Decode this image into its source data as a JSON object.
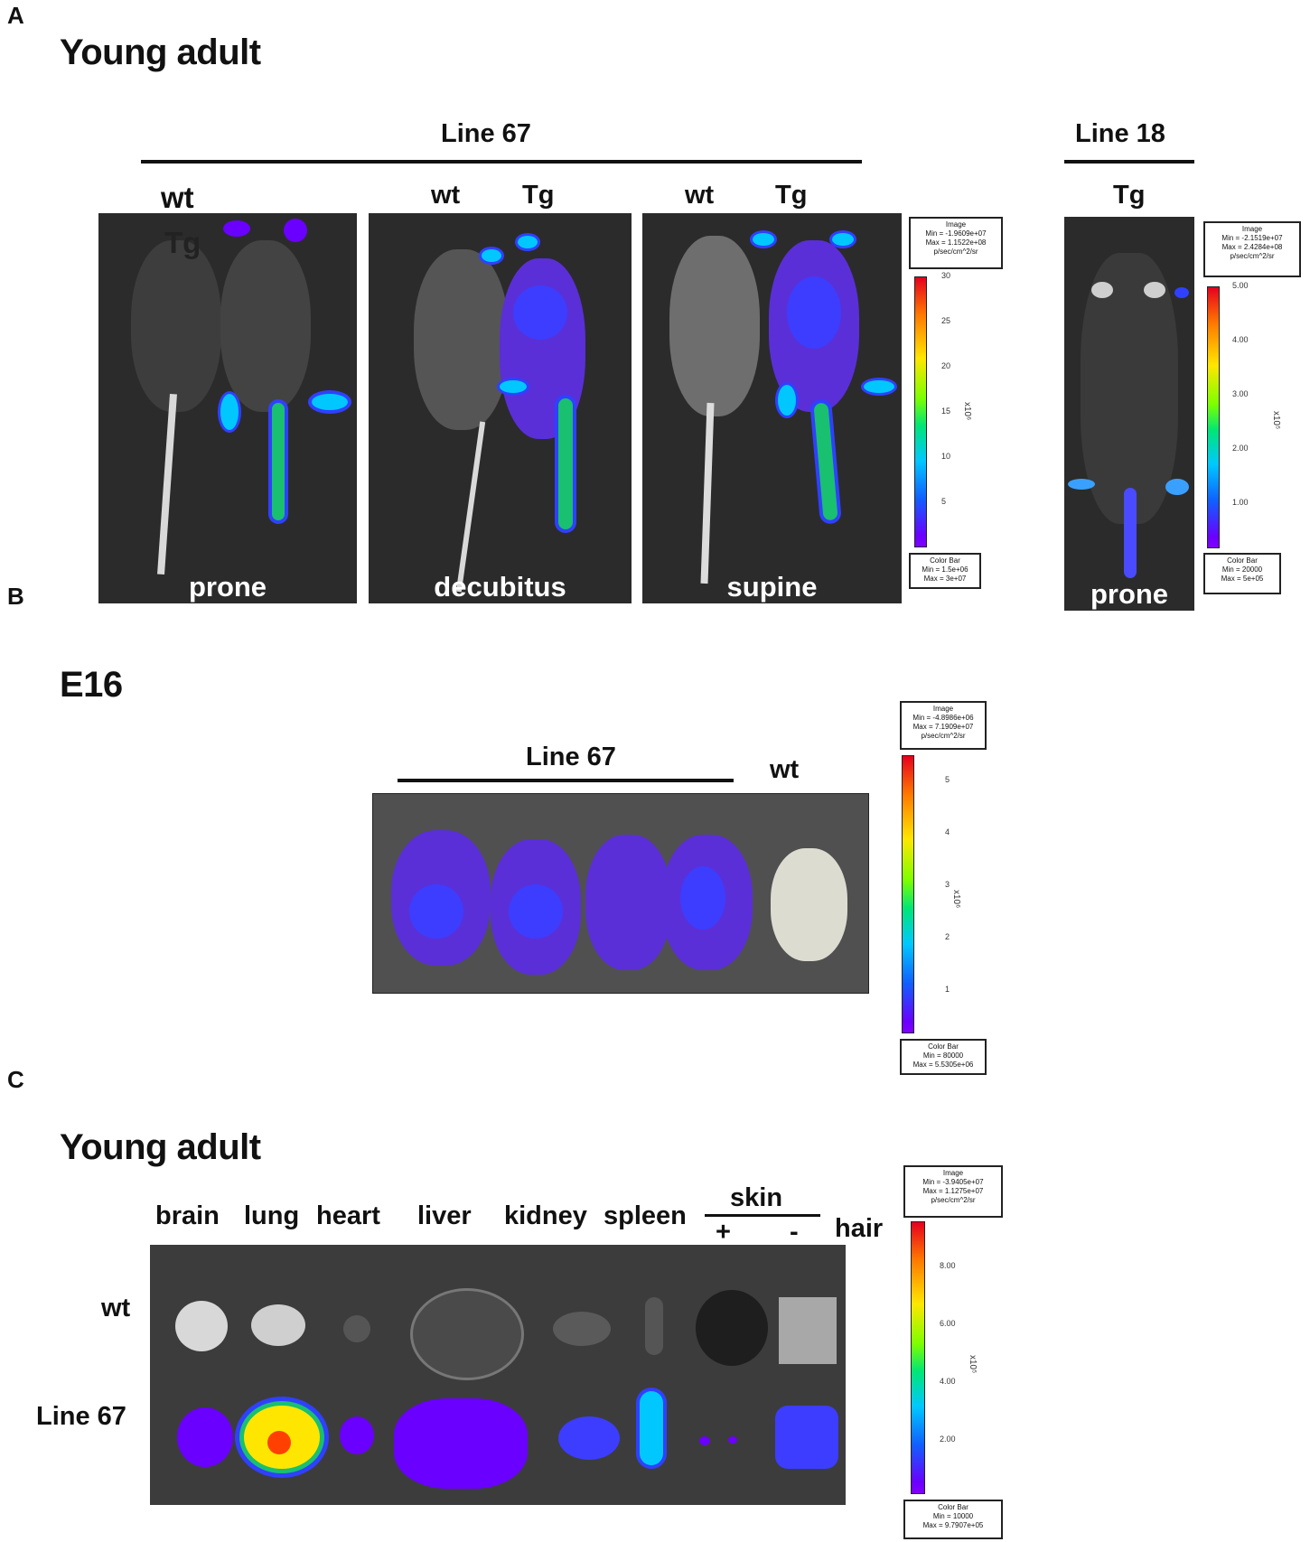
{
  "panelA": {
    "letter": "A",
    "title": "Young adult",
    "line67_label": "Line 67",
    "line18_label": "Line 18",
    "images": [
      {
        "labels": [
          "wt",
          "Tg"
        ],
        "caption": "prone"
      },
      {
        "labels": [
          "wt",
          "Tg"
        ],
        "caption": "decubitus"
      },
      {
        "labels": [
          "wt",
          "Tg"
        ],
        "caption": "supine"
      },
      {
        "labels": [
          "Tg"
        ],
        "caption": "prone"
      }
    ],
    "scale1": {
      "image_box": [
        "Image",
        "Min = -1.9609e+07",
        "Max = 1.1522e+08",
        "p/sec/cm^2/sr"
      ],
      "ticks": [
        "30",
        "25",
        "20",
        "15",
        "10",
        "5"
      ],
      "unit": "x10⁶",
      "colorbar_box": [
        "Color Bar",
        "Min = 1.5e+06",
        "Max = 3e+07"
      ]
    },
    "scale2": {
      "image_box": [
        "Image",
        "Min = -2.1519e+07",
        "Max = 2.4284e+08",
        "p/sec/cm^2/sr"
      ],
      "ticks": [
        "5.00",
        "4.00",
        "3.00",
        "2.00",
        "1.00"
      ],
      "unit": "x10⁵",
      "colorbar_box": [
        "Color Bar",
        "Min = 20000",
        "Max = 5e+05"
      ]
    }
  },
  "panelB": {
    "letter": "B",
    "title": "E16",
    "line67_label": "Line 67",
    "wt_label": "wt",
    "scale": {
      "image_box": [
        "Image",
        "Min = -4.8986e+06",
        "Max = 7.1909e+07",
        "p/sec/cm^2/sr"
      ],
      "ticks": [
        "5",
        "4",
        "3",
        "2",
        "1"
      ],
      "unit": "x10⁶",
      "colorbar_box": [
        "Color Bar",
        "Min = 80000",
        "Max = 5.5305e+06"
      ]
    }
  },
  "panelC": {
    "letter": "C",
    "title": "Young adult",
    "organs": [
      "brain",
      "lung",
      "heart",
      "liver",
      "kidney",
      "spleen"
    ],
    "skin_label": "skin",
    "skin_plus": "+",
    "skin_minus": "-",
    "hair_label": "hair",
    "row_wt": "wt",
    "row_line67": "Line 67",
    "scale": {
      "image_box": [
        "Image",
        "Min = -3.9405e+07",
        "Max = 1.1275e+07",
        "p/sec/cm^2/sr"
      ],
      "ticks": [
        "8.00",
        "6.00",
        "4.00",
        "2.00"
      ],
      "unit": "x10⁵",
      "colorbar_box": [
        "Color Bar",
        "Min = 10000",
        "Max = 9.7907e+05"
      ]
    }
  },
  "colors": {
    "background": "#2b2b2b",
    "signal_low": "#6a00ff",
    "signal_high": "#e6001e"
  }
}
